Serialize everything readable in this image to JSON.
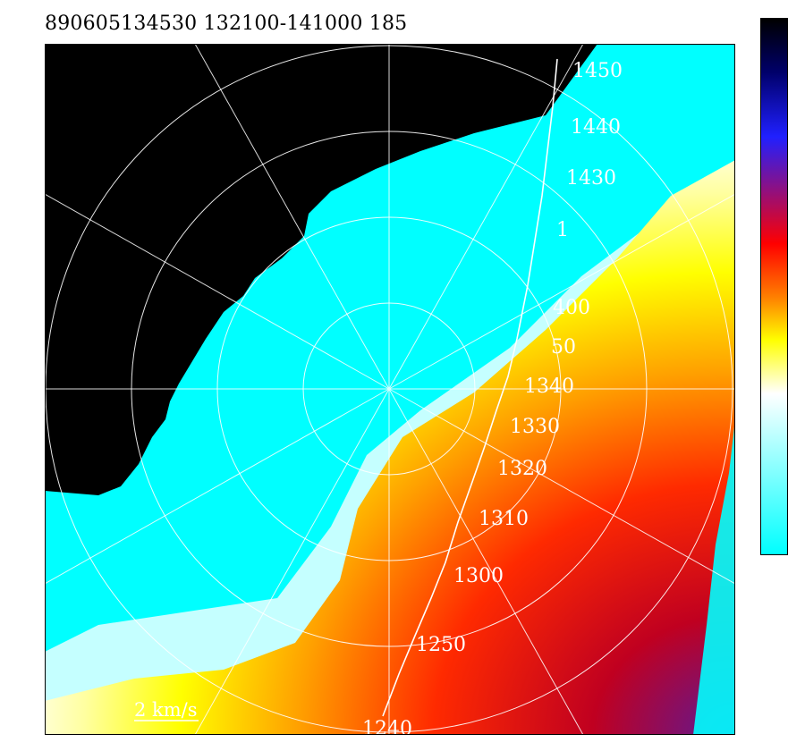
{
  "header": {
    "title": "890605134530 132100-141000 185"
  },
  "map": {
    "time_labels": [
      {
        "text": "1450"
      },
      {
        "text": "1440"
      },
      {
        "text": "1430"
      },
      {
        "text": "1"
      },
      {
        "text": "400"
      },
      {
        "text": "50"
      },
      {
        "text": "1340"
      },
      {
        "text": "1330"
      },
      {
        "text": "1320"
      },
      {
        "text": "1310"
      },
      {
        "text": "1300"
      },
      {
        "text": "1250"
      },
      {
        "text": "1240"
      }
    ],
    "scale_label": "2 km/s"
  },
  "colorbar": {
    "colors": [
      "#000000",
      "#00006a",
      "#2020ff",
      "#ff0000",
      "#ff8000",
      "#ffff00",
      "#ffffff",
      "#00ffff"
    ]
  }
}
